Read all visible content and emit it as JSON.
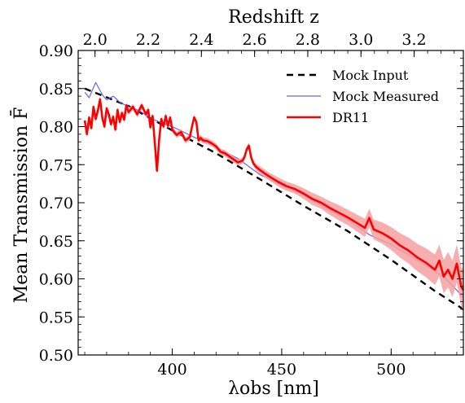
{
  "chart_data": {
    "type": "line",
    "xlabel": "λobs [nm]",
    "ylabel": "Mean Transmission F̄",
    "x2label": "Redshift z",
    "xlim": [
      357,
      533
    ],
    "ylim": [
      0.5,
      0.9
    ],
    "xticks": [
      400,
      450,
      500
    ],
    "yticks": [
      "0.50",
      "0.55",
      "0.60",
      "0.65",
      "0.70",
      "0.75",
      "0.80",
      "0.85",
      "0.90"
    ],
    "ztick_labels": [
      "2.0",
      "2.2",
      "2.4",
      "2.6",
      "2.8",
      "3.0",
      "3.2"
    ],
    "zticks_nm": [
      364.7,
      389.0,
      413.3,
      437.6,
      461.9,
      486.2,
      510.5
    ],
    "grid": false,
    "legend_position": "top-right",
    "series": [
      {
        "name": "Mock Input",
        "style": "dashed",
        "color": "#000000",
        "x": [
          360,
          380,
          400,
          420,
          440,
          460,
          480,
          500,
          520,
          533
        ],
        "y": [
          0.85,
          0.827,
          0.795,
          0.765,
          0.731,
          0.696,
          0.663,
          0.625,
          0.584,
          0.56
        ]
      },
      {
        "name": "Mock Measured",
        "style": "solid-thin",
        "color": "#6666ee",
        "x": [
          360,
          362,
          365,
          368,
          370,
          373,
          376,
          380,
          385,
          390,
          395,
          400,
          410,
          420,
          430,
          440,
          450,
          460,
          470,
          480,
          490,
          500,
          510,
          520,
          525,
          530,
          533
        ],
        "y": [
          0.845,
          0.838,
          0.858,
          0.842,
          0.835,
          0.84,
          0.832,
          0.826,
          0.821,
          0.811,
          0.805,
          0.8,
          0.786,
          0.773,
          0.758,
          0.737,
          0.723,
          0.71,
          0.693,
          0.678,
          0.658,
          0.645,
          0.628,
          0.61,
          0.6,
          0.585,
          0.575
        ]
      },
      {
        "name": "DR11",
        "style": "solid-thick",
        "color": "#ff0000",
        "band_color": "#f4a0a0",
        "x": [
          360,
          361,
          362,
          363,
          364,
          365,
          366,
          367,
          368,
          369,
          370,
          371,
          372,
          373,
          374,
          375,
          376,
          377,
          378,
          379,
          380,
          382,
          384,
          386,
          388,
          389,
          390,
          391,
          392,
          393,
          394,
          395,
          396,
          397,
          398,
          399,
          400,
          402,
          404,
          406,
          408,
          409,
          410,
          411,
          412,
          413,
          414,
          416,
          418,
          420,
          422,
          424,
          426,
          428,
          430,
          432,
          433,
          434,
          435,
          436,
          437,
          438,
          440,
          444,
          448,
          452,
          456,
          460,
          464,
          468,
          472,
          476,
          480,
          484,
          488,
          490,
          492,
          496,
          500,
          504,
          508,
          512,
          516,
          520,
          522,
          524,
          526,
          528,
          530,
          532,
          533
        ],
        "y": [
          0.808,
          0.79,
          0.812,
          0.798,
          0.826,
          0.81,
          0.821,
          0.836,
          0.812,
          0.8,
          0.824,
          0.816,
          0.803,
          0.813,
          0.796,
          0.822,
          0.806,
          0.818,
          0.809,
          0.828,
          0.819,
          0.826,
          0.816,
          0.828,
          0.816,
          0.822,
          0.799,
          0.814,
          0.779,
          0.742,
          0.783,
          0.81,
          0.8,
          0.814,
          0.801,
          0.812,
          0.796,
          0.789,
          0.793,
          0.782,
          0.786,
          0.8,
          0.812,
          0.806,
          0.782,
          0.785,
          0.782,
          0.781,
          0.778,
          0.774,
          0.767,
          0.765,
          0.761,
          0.757,
          0.753,
          0.755,
          0.76,
          0.77,
          0.775,
          0.76,
          0.752,
          0.748,
          0.743,
          0.735,
          0.728,
          0.722,
          0.718,
          0.712,
          0.705,
          0.7,
          0.693,
          0.687,
          0.681,
          0.674,
          0.667,
          0.68,
          0.665,
          0.66,
          0.653,
          0.644,
          0.637,
          0.628,
          0.621,
          0.612,
          0.624,
          0.603,
          0.612,
          0.6,
          0.62,
          0.59,
          0.585
        ],
        "band": [
          0.004,
          0.004,
          0.004,
          0.004,
          0.004,
          0.004,
          0.004,
          0.004,
          0.004,
          0.004,
          0.004,
          0.004,
          0.004,
          0.004,
          0.004,
          0.004,
          0.004,
          0.004,
          0.004,
          0.004,
          0.004,
          0.004,
          0.004,
          0.004,
          0.004,
          0.004,
          0.004,
          0.004,
          0.004,
          0.004,
          0.004,
          0.004,
          0.004,
          0.004,
          0.004,
          0.004,
          0.004,
          0.004,
          0.004,
          0.004,
          0.004,
          0.004,
          0.004,
          0.004,
          0.004,
          0.004,
          0.004,
          0.004,
          0.004,
          0.004,
          0.004,
          0.004,
          0.004,
          0.004,
          0.004,
          0.004,
          0.004,
          0.004,
          0.004,
          0.004,
          0.004,
          0.004,
          0.005,
          0.005,
          0.006,
          0.006,
          0.006,
          0.007,
          0.008,
          0.008,
          0.009,
          0.01,
          0.01,
          0.011,
          0.012,
          0.012,
          0.013,
          0.014,
          0.015,
          0.016,
          0.017,
          0.018,
          0.019,
          0.02,
          0.021,
          0.022,
          0.023,
          0.024,
          0.025,
          0.026,
          0.027
        ]
      }
    ]
  }
}
